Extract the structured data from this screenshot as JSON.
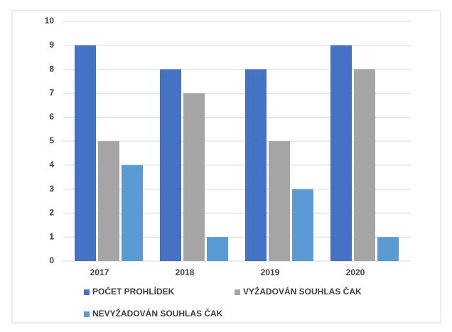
{
  "chart_data": {
    "type": "bar",
    "categories": [
      "2017",
      "2018",
      "2019",
      "2020"
    ],
    "series": [
      {
        "name": "POČET PROHLÍDEK",
        "color": "#4472c4",
        "values": [
          9,
          8,
          8,
          9
        ]
      },
      {
        "name": "VYŽADOVÁN SOUHLAS ČAK",
        "color": "#a5a5a5",
        "values": [
          5,
          7,
          5,
          8
        ]
      },
      {
        "name": "NEVYŽADOVÁN SOUHLAS ČAK",
        "color": "#5b9bd5",
        "values": [
          4,
          1,
          3,
          1
        ]
      }
    ],
    "ylim": [
      0,
      10
    ],
    "yticks": [
      0,
      1,
      2,
      3,
      4,
      5,
      6,
      7,
      8,
      9,
      10
    ],
    "grid": true,
    "legend": "bottom"
  }
}
